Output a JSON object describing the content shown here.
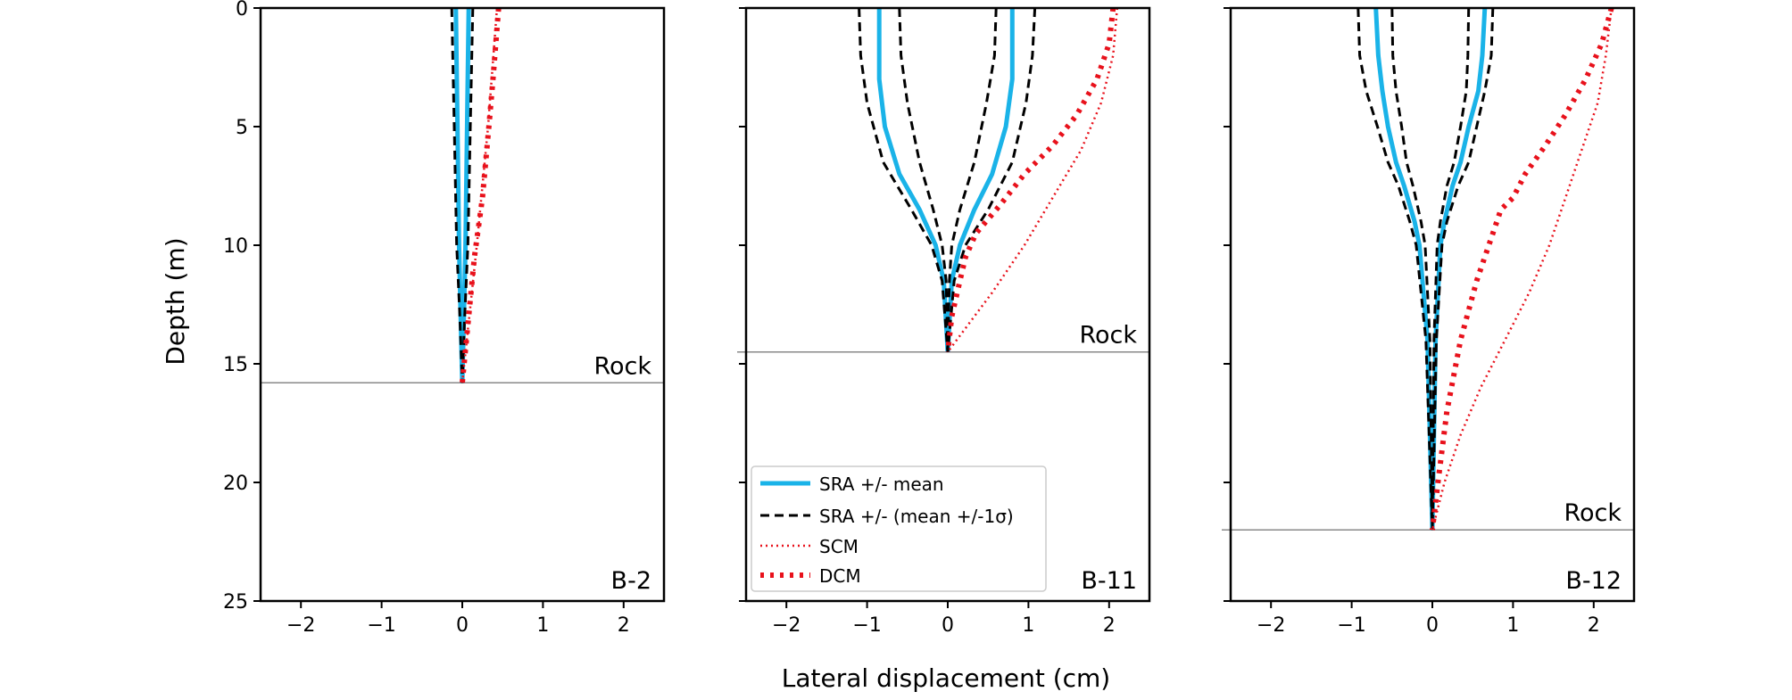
{
  "figure": {
    "xlabel": "Lateral displacement (cm)",
    "ylabel": "Depth (m)"
  },
  "legend": {
    "location": "lower-left of middle panel",
    "entries": [
      {
        "label": "SRA +/- mean",
        "style": "solid",
        "color": "#1ab3e8"
      },
      {
        "label": "SRA +/- (mean +/-1σ)",
        "style": "dashed",
        "color": "#000000"
      },
      {
        "label": "SCM",
        "style": "dotted",
        "color": "#e8111b"
      },
      {
        "label": "DCM",
        "style": "dotted-thick",
        "color": "#e8111b"
      }
    ]
  },
  "colors": {
    "sra_mean": "#1ab3e8",
    "sra_std": "#000000",
    "scm": "#e8111b",
    "dcm": "#e8111b",
    "rock_line": "#888888"
  },
  "chart_data": [
    {
      "type": "line",
      "panel_label": "B-2",
      "rock_label": "Rock",
      "rock_depth": 15.8,
      "xlim": [
        -2.5,
        2.5
      ],
      "ylim": [
        25,
        0
      ],
      "xticks": [
        -2,
        -1,
        0,
        1,
        2
      ],
      "xtick_labels": [
        "−2",
        "−1",
        "0",
        "1",
        "2"
      ],
      "yticks": [
        0,
        5,
        10,
        15,
        20,
        25
      ],
      "ytick_labels": [
        "0",
        "5",
        "10",
        "15",
        "20",
        "25"
      ],
      "series": [
        {
          "key": "mean_pos",
          "style": "mean",
          "points": [
            [
              0.08,
              0
            ],
            [
              0.06,
              5
            ],
            [
              0.04,
              10
            ],
            [
              0.02,
              13
            ],
            [
              0,
              15.8
            ]
          ]
        },
        {
          "key": "mean_neg",
          "style": "mean",
          "points": [
            [
              -0.08,
              0
            ],
            [
              -0.06,
              5
            ],
            [
              -0.04,
              10
            ],
            [
              -0.02,
              13
            ],
            [
              0,
              15.8
            ]
          ]
        },
        {
          "key": "std_pos",
          "style": "std",
          "points": [
            [
              0.13,
              0
            ],
            [
              0.1,
              5
            ],
            [
              0.07,
              10
            ],
            [
              0.03,
              13
            ],
            [
              0,
              15.8
            ]
          ]
        },
        {
          "key": "std_neg",
          "style": "std",
          "points": [
            [
              -0.13,
              0
            ],
            [
              -0.1,
              5
            ],
            [
              -0.07,
              10
            ],
            [
              -0.03,
              13
            ],
            [
              0,
              15.8
            ]
          ]
        },
        {
          "key": "scm",
          "style": "scm",
          "points": [
            [
              0.43,
              0
            ],
            [
              0.32,
              5
            ],
            [
              0.18,
              10
            ],
            [
              0,
              15.8
            ]
          ]
        },
        {
          "key": "dcm",
          "style": "dcm",
          "points": [
            [
              0.45,
              0
            ],
            [
              0.38,
              3
            ],
            [
              0.33,
              5
            ],
            [
              0.25,
              8
            ],
            [
              0.15,
              10.5
            ],
            [
              0,
              15.8
            ]
          ]
        }
      ]
    },
    {
      "type": "line",
      "panel_label": "B-11",
      "rock_label": "Rock",
      "rock_depth": 14.5,
      "xlim": [
        -2.5,
        2.5
      ],
      "ylim": [
        25,
        0
      ],
      "xticks": [
        -2,
        -1,
        0,
        1,
        2
      ],
      "xtick_labels": [
        "−2",
        "−1",
        "0",
        "1",
        "2"
      ],
      "yticks": [
        0,
        5,
        10,
        15,
        20,
        25
      ],
      "ytick_labels": [
        "",
        "",
        "",
        "",
        "",
        ""
      ],
      "series": [
        {
          "key": "mean_pos",
          "style": "mean",
          "points": [
            [
              0.8,
              0
            ],
            [
              0.8,
              3
            ],
            [
              0.72,
              5
            ],
            [
              0.55,
              7
            ],
            [
              0.33,
              8.5
            ],
            [
              0.15,
              10
            ],
            [
              0.05,
              11.5
            ],
            [
              0,
              14.5
            ]
          ]
        },
        {
          "key": "mean_neg",
          "style": "mean",
          "points": [
            [
              -0.85,
              0
            ],
            [
              -0.85,
              3
            ],
            [
              -0.78,
              5
            ],
            [
              -0.6,
              7
            ],
            [
              -0.35,
              8.5
            ],
            [
              -0.15,
              10
            ],
            [
              -0.05,
              11.5
            ],
            [
              0,
              14.5
            ]
          ]
        },
        {
          "key": "std_pos",
          "style": "std",
          "points": [
            [
              1.08,
              0
            ],
            [
              1.05,
              2
            ],
            [
              0.97,
              4
            ],
            [
              0.8,
              6.5
            ],
            [
              0.5,
              8.5
            ],
            [
              0.22,
              10
            ],
            [
              0.08,
              11.5
            ],
            [
              0,
              14.5
            ]
          ]
        },
        {
          "key": "std_neg",
          "style": "std",
          "points": [
            [
              -1.1,
              0
            ],
            [
              -1.08,
              2
            ],
            [
              -1.0,
              4
            ],
            [
              -0.8,
              6.5
            ],
            [
              -0.45,
              8.5
            ],
            [
              -0.2,
              10
            ],
            [
              -0.07,
              11.5
            ],
            [
              0,
              14.5
            ]
          ]
        },
        {
          "key": "std_pos_inner",
          "style": "std",
          "points": [
            [
              0.6,
              0
            ],
            [
              0.58,
              2
            ],
            [
              0.48,
              4
            ],
            [
              0.33,
              6.5
            ],
            [
              0.15,
              8.5
            ],
            [
              0.05,
              10
            ],
            [
              0.02,
              11.5
            ],
            [
              0,
              14.5
            ]
          ]
        },
        {
          "key": "std_neg_inner",
          "style": "std",
          "points": [
            [
              -0.6,
              0
            ],
            [
              -0.58,
              2
            ],
            [
              -0.5,
              4
            ],
            [
              -0.35,
              6.5
            ],
            [
              -0.18,
              8.5
            ],
            [
              -0.07,
              10
            ],
            [
              -0.02,
              11.5
            ],
            [
              0,
              14.5
            ]
          ]
        },
        {
          "key": "scm",
          "style": "scm",
          "points": [
            [
              2.1,
              0
            ],
            [
              2.05,
              2
            ],
            [
              1.9,
              4
            ],
            [
              1.65,
              6
            ],
            [
              1.3,
              8
            ],
            [
              0.95,
              10
            ],
            [
              0.55,
              12
            ],
            [
              0,
              14.5
            ]
          ]
        },
        {
          "key": "dcm",
          "style": "dcm",
          "points": [
            [
              2.05,
              0
            ],
            [
              2.0,
              1.5
            ],
            [
              1.85,
              3
            ],
            [
              1.6,
              4.5
            ],
            [
              1.3,
              5.8
            ],
            [
              0.95,
              7
            ],
            [
              0.65,
              8.3
            ],
            [
              0.35,
              9.5
            ],
            [
              0.22,
              10.5
            ],
            [
              0.15,
              11.5
            ],
            [
              0.05,
              13
            ],
            [
              0,
              14.5
            ]
          ]
        }
      ]
    },
    {
      "type": "line",
      "panel_label": "B-12",
      "rock_label": "Rock",
      "rock_depth": 22,
      "xlim": [
        -2.5,
        2.5
      ],
      "ylim": [
        25,
        0
      ],
      "xticks": [
        -2,
        -1,
        0,
        1,
        2
      ],
      "xtick_labels": [
        "−2",
        "−1",
        "0",
        "1",
        "2"
      ],
      "yticks": [
        0,
        5,
        10,
        15,
        20,
        25
      ],
      "ytick_labels": [
        "",
        "",
        "",
        "",
        "",
        ""
      ],
      "series": [
        {
          "key": "mean_pos",
          "style": "mean",
          "points": [
            [
              0.65,
              0
            ],
            [
              0.62,
              2
            ],
            [
              0.57,
              3.5
            ],
            [
              0.45,
              5
            ],
            [
              0.35,
              6.5
            ],
            [
              0.25,
              7.5
            ],
            [
              0.15,
              9
            ],
            [
              0.1,
              10
            ],
            [
              0.04,
              14
            ],
            [
              0,
              22
            ]
          ]
        },
        {
          "key": "mean_neg",
          "style": "mean",
          "points": [
            [
              -0.7,
              0
            ],
            [
              -0.67,
              2
            ],
            [
              -0.62,
              3.5
            ],
            [
              -0.55,
              5
            ],
            [
              -0.45,
              6.5
            ],
            [
              -0.35,
              7.5
            ],
            [
              -0.22,
              9
            ],
            [
              -0.16,
              10
            ],
            [
              -0.06,
              14
            ],
            [
              0,
              22
            ]
          ]
        },
        {
          "key": "std_pos",
          "style": "std",
          "points": [
            [
              0.75,
              0
            ],
            [
              0.73,
              2
            ],
            [
              0.65,
              3.5
            ],
            [
              0.55,
              5
            ],
            [
              0.45,
              6.5
            ],
            [
              0.32,
              7.5
            ],
            [
              0.18,
              9
            ],
            [
              0.12,
              10
            ],
            [
              0.05,
              14
            ],
            [
              0,
              22
            ]
          ]
        },
        {
          "key": "std_neg",
          "style": "std",
          "points": [
            [
              -0.92,
              0
            ],
            [
              -0.9,
              2
            ],
            [
              -0.82,
              3.5
            ],
            [
              -0.68,
              5
            ],
            [
              -0.55,
              6.5
            ],
            [
              -0.42,
              7.5
            ],
            [
              -0.28,
              9
            ],
            [
              -0.2,
              10
            ],
            [
              -0.08,
              14
            ],
            [
              0,
              22
            ]
          ]
        },
        {
          "key": "std_pos_inner",
          "style": "std",
          "points": [
            [
              0.45,
              0
            ],
            [
              0.44,
              2
            ],
            [
              0.42,
              3.5
            ],
            [
              0.35,
              5
            ],
            [
              0.27,
              6.5
            ],
            [
              0.18,
              7.5
            ],
            [
              0.1,
              9
            ],
            [
              0.06,
              10
            ],
            [
              0.02,
              14
            ],
            [
              0,
              22
            ]
          ]
        },
        {
          "key": "std_neg_inner",
          "style": "std",
          "points": [
            [
              -0.5,
              0
            ],
            [
              -0.49,
              2
            ],
            [
              -0.45,
              3.5
            ],
            [
              -0.38,
              5
            ],
            [
              -0.32,
              6.5
            ],
            [
              -0.24,
              7.5
            ],
            [
              -0.14,
              9
            ],
            [
              -0.09,
              10
            ],
            [
              -0.03,
              14
            ],
            [
              0,
              22
            ]
          ]
        },
        {
          "key": "scm",
          "style": "scm",
          "points": [
            [
              2.22,
              0
            ],
            [
              2.15,
              2
            ],
            [
              2.05,
              4
            ],
            [
              1.85,
              6
            ],
            [
              1.65,
              8
            ],
            [
              1.45,
              10
            ],
            [
              1.2,
              12
            ],
            [
              0.9,
              14
            ],
            [
              0.6,
              16
            ],
            [
              0.35,
              18
            ],
            [
              0.15,
              20
            ],
            [
              0,
              22
            ]
          ]
        },
        {
          "key": "dcm",
          "style": "dcm",
          "points": [
            [
              2.22,
              0
            ],
            [
              2.1,
              1.5
            ],
            [
              1.9,
              3
            ],
            [
              1.65,
              4.5
            ],
            [
              1.4,
              5.8
            ],
            [
              1.15,
              7
            ],
            [
              1.0,
              8
            ],
            [
              0.85,
              8.5
            ],
            [
              0.75,
              9.5
            ],
            [
              0.55,
              11.5
            ],
            [
              0.35,
              14
            ],
            [
              0.18,
              17
            ],
            [
              0.07,
              20
            ],
            [
              0,
              22
            ]
          ]
        }
      ]
    }
  ]
}
